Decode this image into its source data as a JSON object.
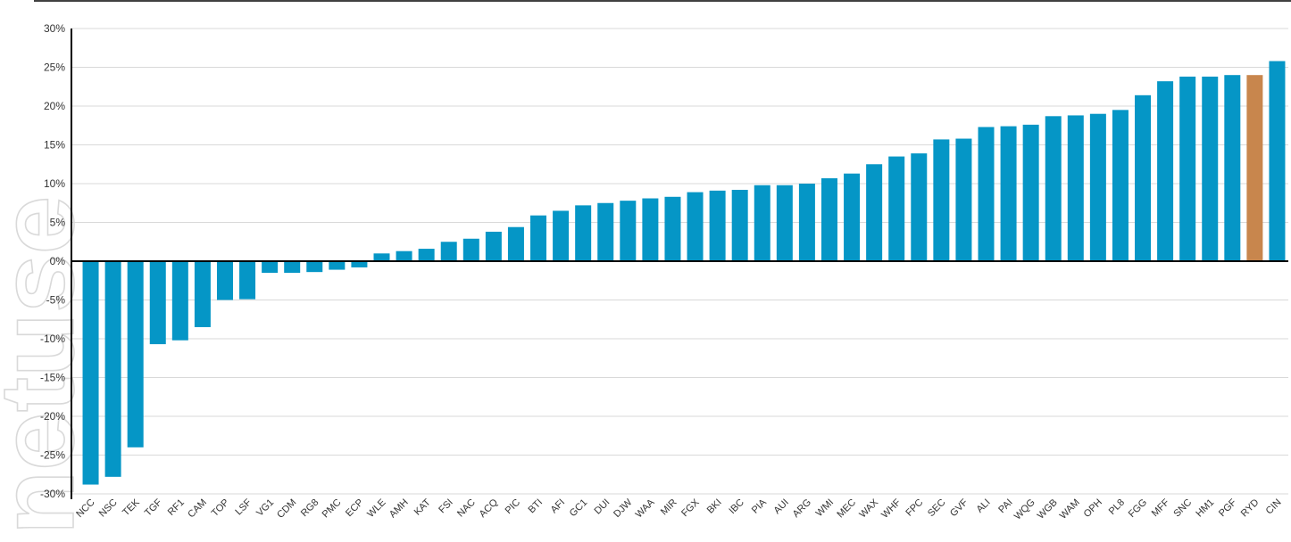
{
  "watermark_text": "netuse",
  "colors": {
    "bar": "#0596c6",
    "highlight": "#c8864d",
    "grid": "#d9d9d9",
    "axis": "#000000",
    "watermark": "#d9d9d9"
  },
  "chart_data": {
    "type": "bar",
    "title": "",
    "xlabel": "",
    "ylabel": "",
    "ylim": [
      -30,
      30
    ],
    "ytick_values": [
      30,
      25,
      20,
      15,
      10,
      5,
      0,
      -5,
      -10,
      -15,
      -20,
      -25,
      -30
    ],
    "ytick_labels": [
      "30%",
      "25%",
      "20%",
      "15%",
      "10%",
      "5%",
      "0%",
      "-5%",
      "-10%",
      "-15%",
      "-20%",
      "-25%",
      "-30%"
    ],
    "grid": true,
    "highlight_category": "RYD",
    "categories": [
      "NCC",
      "NSC",
      "TEK",
      "TGF",
      "RF1",
      "CAM",
      "TOP",
      "LSF",
      "VG1",
      "CDM",
      "RG8",
      "PMC",
      "ECP",
      "WLE",
      "AMH",
      "KAT",
      "FSI",
      "NAC",
      "ACQ",
      "PIC",
      "BTI",
      "AFI",
      "GC1",
      "DUI",
      "DJW",
      "WAA",
      "MIR",
      "FGX",
      "BKI",
      "IBC",
      "PIA",
      "AUI",
      "ARG",
      "WMI",
      "MEC",
      "WAX",
      "WHF",
      "FPC",
      "SEC",
      "GVF",
      "ALI",
      "PAI",
      "WQG",
      "WGB",
      "WAM",
      "OPH",
      "PL8",
      "FGG",
      "MFF",
      "SNC",
      "HM1",
      "PGF",
      "RYD",
      "CIN"
    ],
    "values": [
      -28.8,
      -27.8,
      -24.0,
      -10.7,
      -10.2,
      -8.5,
      -5.0,
      -4.9,
      -1.5,
      -1.5,
      -1.4,
      -1.1,
      -0.8,
      1.0,
      1.3,
      1.6,
      2.5,
      2.9,
      3.8,
      4.4,
      5.9,
      6.5,
      7.2,
      7.5,
      7.8,
      8.1,
      8.3,
      8.9,
      9.1,
      9.2,
      9.8,
      9.8,
      10.0,
      10.7,
      11.3,
      12.5,
      13.5,
      13.9,
      15.7,
      15.8,
      17.3,
      17.4,
      17.6,
      18.7,
      18.8,
      19.0,
      19.5,
      21.4,
      23.2,
      23.8,
      23.8,
      24.0,
      24.0,
      25.8
    ]
  }
}
